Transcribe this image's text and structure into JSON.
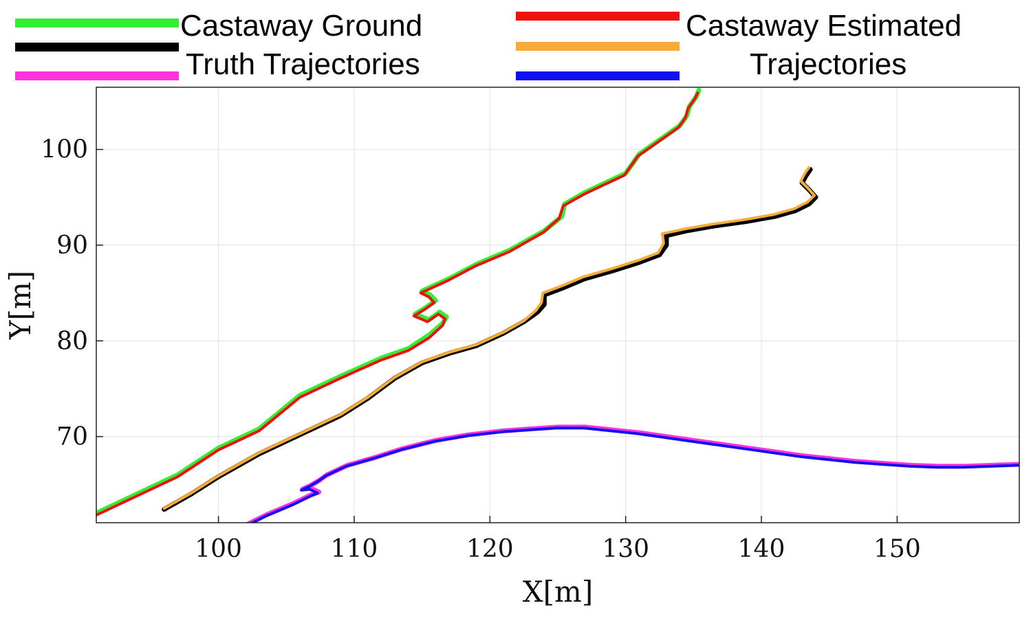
{
  "legend": {
    "ground_truth_label_line1": "Castaway Ground",
    "ground_truth_label_line2": "Truth Trajectories",
    "estimated_label_line1": "Castaway Estimated",
    "estimated_label_line2": "Trajectories"
  },
  "colors": {
    "gt1": "#33ee33",
    "gt2": "#000000",
    "gt3": "#ff33dd",
    "est1": "#ee1111",
    "est2": "#f7ac3a",
    "est3": "#1010f0",
    "grid": "#e6e6e6",
    "axis": "#222222"
  },
  "chart_data": {
    "type": "line",
    "xlabel": "X[m]",
    "ylabel": "Y[m]",
    "xlim": [
      91,
      159
    ],
    "ylim": [
      61,
      106.5
    ],
    "xticks": [
      100,
      110,
      120,
      130,
      140,
      150
    ],
    "yticks": [
      70,
      80,
      90,
      100
    ],
    "grid": true,
    "legend_position": "top",
    "series": [
      {
        "role": "ground_truth",
        "color_key": "gt1",
        "points": [
          [
            91,
            62
          ],
          [
            94,
            64
          ],
          [
            97,
            66
          ],
          [
            100,
            68.8
          ],
          [
            103,
            70.8
          ],
          [
            106,
            74.3
          ],
          [
            109,
            76.3
          ],
          [
            112,
            78.2
          ],
          [
            114,
            79.2
          ],
          [
            115.5,
            80.6
          ],
          [
            116.5,
            81.8
          ],
          [
            116.8,
            82.5
          ],
          [
            116.3,
            83
          ],
          [
            115.5,
            82.2
          ],
          [
            115,
            82.5
          ],
          [
            114.5,
            82.8
          ],
          [
            115.3,
            83.5
          ],
          [
            116,
            84.2
          ],
          [
            115.6,
            84.8
          ],
          [
            115,
            85.2
          ],
          [
            117,
            86.5
          ],
          [
            119,
            88
          ],
          [
            121.5,
            89.5
          ],
          [
            124,
            91.5
          ],
          [
            125.3,
            93
          ],
          [
            125.5,
            94.3
          ],
          [
            127,
            95.5
          ],
          [
            128.5,
            96.5
          ],
          [
            130,
            97.5
          ],
          [
            130.5,
            98.5
          ],
          [
            131,
            99.5
          ],
          [
            132,
            100.5
          ],
          [
            133,
            101.5
          ],
          [
            134,
            102.5
          ],
          [
            134.5,
            103.5
          ],
          [
            134.7,
            104.5
          ],
          [
            135.2,
            105.5
          ],
          [
            135.4,
            106.2
          ]
        ]
      },
      {
        "role": "estimated",
        "color_key": "est1",
        "points": [
          [
            91,
            61.8
          ],
          [
            94,
            63.8
          ],
          [
            97,
            65.8
          ],
          [
            100,
            68.6
          ],
          [
            103,
            70.6
          ],
          [
            106,
            74.1
          ],
          [
            109,
            76.1
          ],
          [
            112,
            78
          ],
          [
            114,
            79
          ],
          [
            115.5,
            80.3
          ],
          [
            116.5,
            81.6
          ],
          [
            116.7,
            82.3
          ],
          [
            116.2,
            82.8
          ],
          [
            115.4,
            82
          ],
          [
            114.9,
            82.3
          ],
          [
            114.4,
            82.6
          ],
          [
            115.2,
            83.3
          ],
          [
            115.9,
            84
          ],
          [
            115.5,
            84.6
          ],
          [
            114.9,
            85
          ],
          [
            116.9,
            86.3
          ],
          [
            118.9,
            87.8
          ],
          [
            121.4,
            89.3
          ],
          [
            123.9,
            91.3
          ],
          [
            125.1,
            92.8
          ],
          [
            125.4,
            94.1
          ],
          [
            126.9,
            95.3
          ],
          [
            128.4,
            96.3
          ],
          [
            129.9,
            97.3
          ],
          [
            130.4,
            98.3
          ],
          [
            130.9,
            99.3
          ],
          [
            131.9,
            100.3
          ],
          [
            132.9,
            101.3
          ],
          [
            133.9,
            102.3
          ],
          [
            134.4,
            103.3
          ],
          [
            134.6,
            104.3
          ],
          [
            135.1,
            105.3
          ],
          [
            135.3,
            105.9
          ]
        ]
      },
      {
        "role": "ground_truth",
        "color_key": "gt2",
        "points": [
          [
            96,
            62.4
          ],
          [
            98,
            64
          ],
          [
            100,
            65.8
          ],
          [
            103,
            68.2
          ],
          [
            106,
            70.2
          ],
          [
            109,
            72.2
          ],
          [
            111,
            74
          ],
          [
            113,
            76.1
          ],
          [
            115,
            77.7
          ],
          [
            117,
            78.7
          ],
          [
            119,
            79.5
          ],
          [
            121,
            80.8
          ],
          [
            122.5,
            82
          ],
          [
            123.5,
            83
          ],
          [
            124,
            83.8
          ],
          [
            124,
            84.8
          ],
          [
            125.5,
            85.6
          ],
          [
            127,
            86.5
          ],
          [
            129,
            87.3
          ],
          [
            131,
            88.2
          ],
          [
            132.5,
            89
          ],
          [
            133,
            90
          ],
          [
            133,
            91
          ],
          [
            134.5,
            91.5
          ],
          [
            136.5,
            92
          ],
          [
            139,
            92.5
          ],
          [
            141,
            93
          ],
          [
            142.5,
            93.6
          ],
          [
            143.5,
            94.3
          ],
          [
            144,
            95
          ],
          [
            143.5,
            95.8
          ],
          [
            143,
            96.5
          ],
          [
            143.3,
            97.3
          ],
          [
            143.6,
            97.9
          ]
        ]
      },
      {
        "role": "estimated",
        "color_key": "est2",
        "points": [
          [
            96,
            62.5
          ],
          [
            98,
            64.1
          ],
          [
            100,
            65.9
          ],
          [
            103,
            68.3
          ],
          [
            106,
            70.3
          ],
          [
            109,
            72.3
          ],
          [
            111,
            74.1
          ],
          [
            113,
            76.2
          ],
          [
            115,
            77.8
          ],
          [
            117,
            78.8
          ],
          [
            119,
            79.6
          ],
          [
            121,
            80.9
          ],
          [
            122.5,
            82.1
          ],
          [
            123.4,
            83.2
          ],
          [
            123.8,
            84
          ],
          [
            123.9,
            85
          ],
          [
            125.4,
            85.8
          ],
          [
            126.9,
            86.7
          ],
          [
            128.9,
            87.5
          ],
          [
            130.9,
            88.4
          ],
          [
            132.4,
            89.2
          ],
          [
            132.8,
            90.2
          ],
          [
            132.7,
            91.2
          ],
          [
            134.4,
            91.7
          ],
          [
            136.4,
            92.2
          ],
          [
            138.9,
            92.7
          ],
          [
            140.9,
            93.2
          ],
          [
            142.4,
            93.8
          ],
          [
            143.4,
            94.5
          ],
          [
            143.9,
            95.2
          ],
          [
            143.4,
            96
          ],
          [
            142.9,
            96.7
          ],
          [
            143.2,
            97.5
          ],
          [
            143.5,
            98.1
          ]
        ]
      },
      {
        "role": "ground_truth",
        "color_key": "gt3",
        "points": [
          [
            101.8,
            60.6
          ],
          [
            103.5,
            61.8
          ],
          [
            105.5,
            63
          ],
          [
            106.8,
            63.9
          ],
          [
            107.4,
            64.2
          ],
          [
            106.8,
            64.6
          ],
          [
            106.2,
            64.5
          ],
          [
            106.8,
            64.9
          ],
          [
            107.4,
            65.4
          ],
          [
            108,
            66
          ],
          [
            109.5,
            67
          ],
          [
            111.5,
            67.8
          ],
          [
            113.5,
            68.7
          ],
          [
            116,
            69.6
          ],
          [
            118.5,
            70.2
          ],
          [
            121,
            70.6
          ],
          [
            123,
            70.8
          ],
          [
            125,
            71
          ],
          [
            127,
            71
          ],
          [
            129,
            70.7
          ],
          [
            131,
            70.4
          ],
          [
            133,
            70
          ],
          [
            135,
            69.6
          ],
          [
            137,
            69.2
          ],
          [
            139,
            68.8
          ],
          [
            141,
            68.4
          ],
          [
            143,
            68
          ],
          [
            145,
            67.7
          ],
          [
            147,
            67.4
          ],
          [
            149,
            67.2
          ],
          [
            151,
            67
          ],
          [
            153,
            66.9
          ],
          [
            155,
            66.9
          ],
          [
            157,
            67
          ],
          [
            159,
            67.1
          ]
        ]
      },
      {
        "role": "estimated",
        "color_key": "est3",
        "points": [
          [
            101.8,
            60.5
          ],
          [
            103.5,
            61.7
          ],
          [
            105.5,
            62.9
          ],
          [
            106.8,
            63.8
          ],
          [
            107.3,
            64.1
          ],
          [
            106.7,
            64.5
          ],
          [
            106.1,
            64.4
          ],
          [
            106.7,
            64.8
          ],
          [
            107.3,
            65.3
          ],
          [
            107.9,
            65.9
          ],
          [
            109.4,
            66.9
          ],
          [
            111.4,
            67.7
          ],
          [
            113.4,
            68.6
          ],
          [
            115.9,
            69.5
          ],
          [
            118.4,
            70.1
          ],
          [
            120.9,
            70.5
          ],
          [
            122.9,
            70.7
          ],
          [
            124.9,
            70.9
          ],
          [
            126.9,
            70.9
          ],
          [
            128.9,
            70.6
          ],
          [
            130.9,
            70.3
          ],
          [
            132.9,
            69.9
          ],
          [
            134.9,
            69.5
          ],
          [
            136.9,
            69.1
          ],
          [
            138.9,
            68.7
          ],
          [
            140.9,
            68.3
          ],
          [
            142.9,
            67.9
          ],
          [
            144.9,
            67.6
          ],
          [
            146.9,
            67.3
          ],
          [
            148.9,
            67.1
          ],
          [
            150.9,
            66.9
          ],
          [
            152.9,
            66.8
          ],
          [
            154.9,
            66.8
          ],
          [
            156.9,
            66.9
          ],
          [
            158.9,
            67
          ]
        ]
      }
    ]
  }
}
